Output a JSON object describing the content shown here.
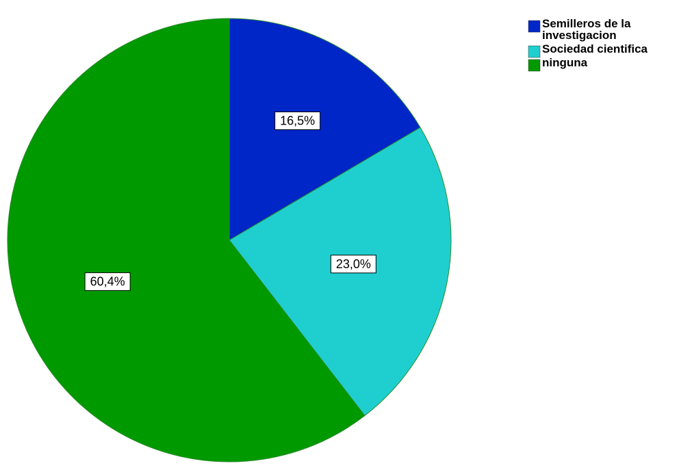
{
  "chart_data": {
    "type": "pie",
    "categories": [
      "Semilleros de la investigacion",
      "Sociedad cientifica",
      "ninguna"
    ],
    "values": [
      16.5,
      23.0,
      60.4
    ],
    "data_labels": [
      "16,5%",
      "23,0%",
      "60,4%"
    ],
    "colors": [
      "#0026c8",
      "#1fcfcf",
      "#009a00"
    ],
    "outline_color": "#2a8a2a",
    "legend": {
      "placement": "top-right",
      "entries": [
        {
          "lines": [
            "Semilleros de la",
            "investigacion"
          ]
        },
        {
          "lines": [
            "Sociedad cientifica"
          ]
        },
        {
          "lines": [
            "ninguna"
          ]
        }
      ]
    },
    "start_angle": "12 o'clock",
    "direction": "clockwise"
  }
}
